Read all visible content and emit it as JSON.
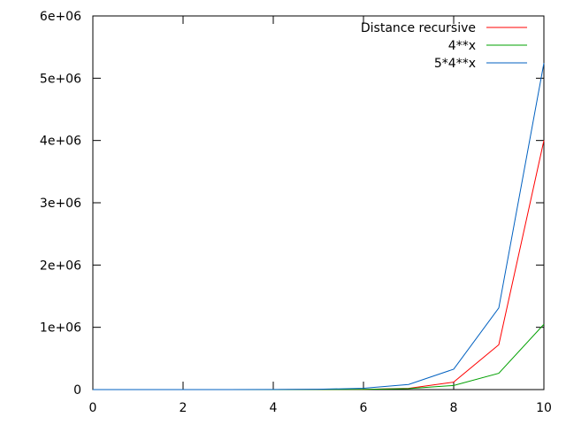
{
  "chart_data": {
    "type": "line",
    "title": "",
    "xlabel": "",
    "ylabel": "",
    "xlim": [
      0,
      10
    ],
    "ylim": [
      0,
      6000000
    ],
    "grid": false,
    "legend_position": "top-right",
    "x_ticks": [
      0,
      2,
      4,
      6,
      8,
      10
    ],
    "x_tick_labels": [
      "0",
      "2",
      "4",
      "6",
      "8",
      "10"
    ],
    "y_ticks": [
      0,
      1000000,
      2000000,
      3000000,
      4000000,
      5000000,
      6000000
    ],
    "y_tick_labels": [
      "0",
      "1e+06",
      "2e+06",
      "3e+06",
      "4e+06",
      "5e+06",
      "6e+06"
    ],
    "series": [
      {
        "name": "Distance recursive",
        "color": "#ff0000",
        "x": [
          0,
          1,
          2,
          3,
          4,
          5,
          6,
          7,
          8,
          9,
          10
        ],
        "values": [
          1,
          4,
          16,
          64,
          256,
          1024,
          4096,
          20000,
          120000,
          720000,
          4000000
        ]
      },
      {
        "name": "4**x",
        "color": "#00a000",
        "x": [
          0,
          1,
          2,
          3,
          4,
          5,
          6,
          7,
          8,
          9,
          10
        ],
        "values": [
          1,
          4,
          16,
          64,
          256,
          1024,
          4096,
          16384,
          65536,
          262144,
          1048576
        ]
      },
      {
        "name": "5*4**x",
        "color": "#0060c0",
        "x": [
          0,
          1,
          2,
          3,
          4,
          5,
          6,
          7,
          8,
          9,
          10
        ],
        "values": [
          5,
          20,
          80,
          320,
          1280,
          5120,
          20480,
          81920,
          327680,
          1310720,
          5242880
        ]
      }
    ]
  }
}
